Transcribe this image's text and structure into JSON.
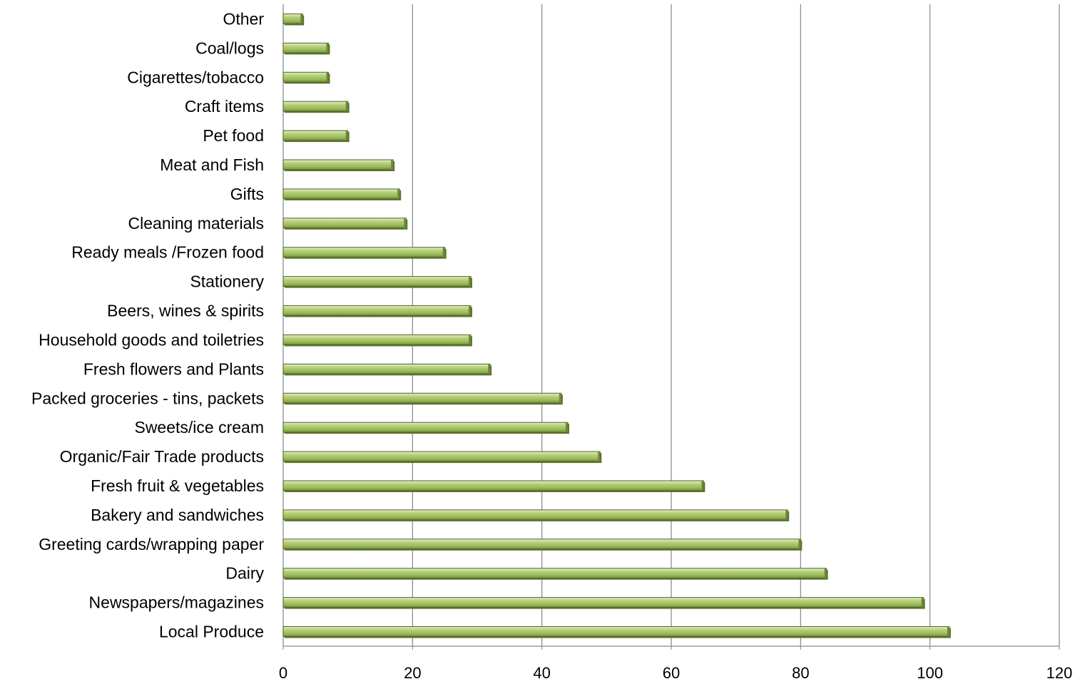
{
  "chart_data": {
    "type": "bar",
    "orientation": "horizontal",
    "title": "",
    "xlabel": "",
    "ylabel": "",
    "xlim": [
      0,
      120
    ],
    "x_ticks": [
      0,
      20,
      40,
      60,
      80,
      100,
      120
    ],
    "grid": "vertical major gridlines",
    "legend": "none",
    "bar_color": "#9bbb59",
    "bar_highlight_color": "#d7e4bd",
    "bar_edge_color": "#4f6228",
    "gridline_color": "#868686",
    "categories": [
      "Other",
      "Coal/logs",
      "Cigarettes/tobacco",
      "Craft items",
      "Pet food",
      "Meat and Fish",
      "Gifts",
      "Cleaning materials",
      "Ready meals /Frozen food",
      "Stationery",
      "Beers, wines & spirits",
      "Household goods and toiletries",
      "Fresh flowers and Plants",
      "Packed groceries - tins, packets",
      "Sweets/ice cream",
      "Organic/Fair Trade products",
      "Fresh fruit & vegetables",
      "Bakery and sandwiches",
      "Greeting cards/wrapping paper",
      "Dairy",
      "Newspapers/magazines",
      "Local Produce"
    ],
    "values": [
      3,
      7,
      7,
      10,
      10,
      17,
      18,
      19,
      25,
      29,
      29,
      29,
      32,
      43,
      44,
      49,
      65,
      78,
      80,
      84,
      99,
      103
    ]
  }
}
